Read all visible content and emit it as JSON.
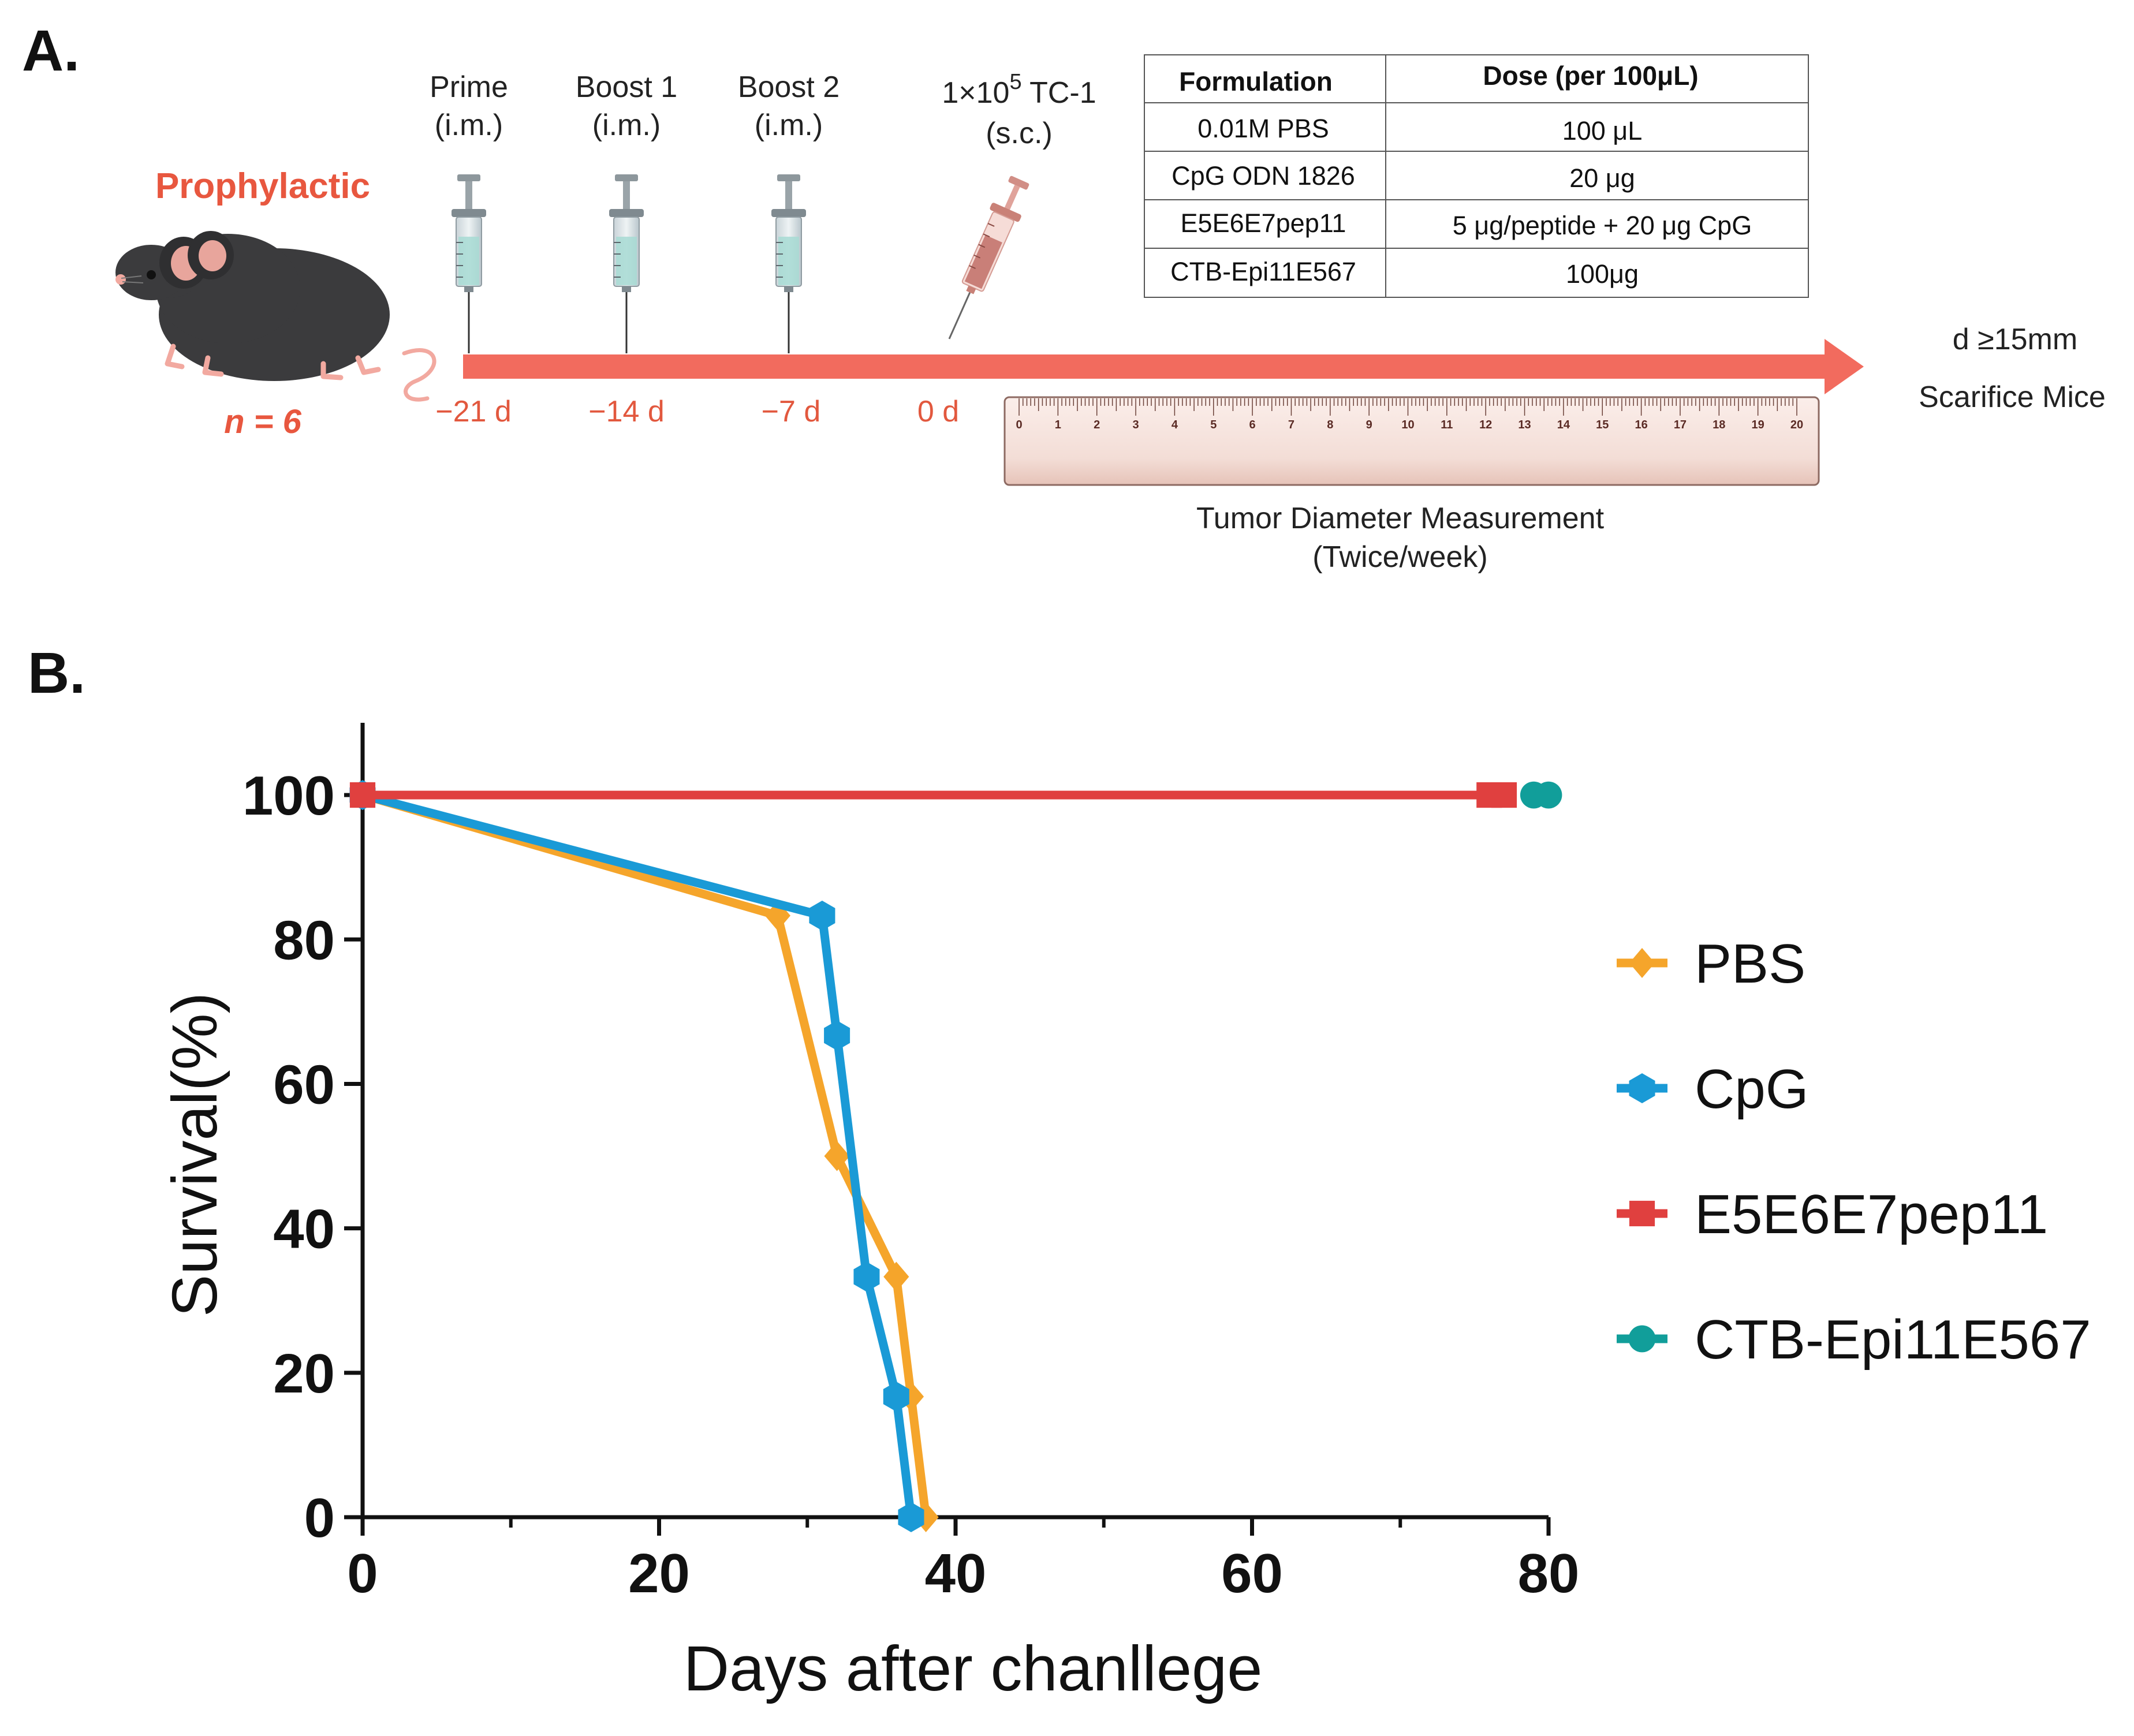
{
  "panel_a": {
    "label": "A.",
    "group_label": "Prophylactic",
    "n_label": "n = 6",
    "steps": [
      {
        "line1": "Prime",
        "line2": "(i.m.)",
        "day": "−21 d"
      },
      {
        "line1": "Boost 1",
        "line2": "(i.m.)",
        "day": "−14 d"
      },
      {
        "line1": "Boost 2",
        "line2": "(i.m.)",
        "day": "−7 d"
      },
      {
        "line1": "1×10",
        "line1_sup": "5",
        "line1_after": " TC-1",
        "line2": "(s.c.)",
        "day": "0 d"
      }
    ],
    "endpoint": {
      "line1": "d ≥15mm",
      "line2": "Scarifice Mice"
    },
    "ruler": {
      "numbers": [
        "0",
        "1",
        "2",
        "3",
        "4",
        "5",
        "6",
        "7",
        "8",
        "9",
        "10",
        "11",
        "12",
        "13",
        "14",
        "15",
        "16",
        "17",
        "18",
        "19",
        "20"
      ],
      "caption1": "Tumor Diameter Measurement",
      "caption2": "(Twice/week)"
    },
    "table": {
      "headers": [
        "Formulation",
        "Dose  (per 100μL)"
      ],
      "rows": [
        [
          "0.01M PBS",
          "100 μL"
        ],
        [
          "CpG ODN 1826",
          "20 μg"
        ],
        [
          "E5E6E7pep11",
          "5 μg/peptide + 20 μg CpG"
        ],
        [
          "CTB-Epi11E567",
          "100μg"
        ]
      ]
    },
    "colors": {
      "accent": "#f26b5e",
      "text_red": "#e2583e"
    }
  },
  "panel_b": {
    "label": "B."
  },
  "chart_data": {
    "type": "line",
    "xlabel": "Days after chanllege",
    "ylabel": "Survival(%)",
    "xlim": [
      0,
      80
    ],
    "ylim": [
      0,
      110
    ],
    "xticks": [
      0,
      20,
      40,
      60,
      80
    ],
    "xminor": [
      10,
      30,
      50,
      70
    ],
    "yticks": [
      0,
      20,
      40,
      60,
      80,
      100
    ],
    "grid": false,
    "legend_position": "right",
    "series": [
      {
        "name": "PBS",
        "color": "#f5a52b",
        "marker": "diamond",
        "x": [
          0,
          28,
          32,
          36,
          37,
          38
        ],
        "y": [
          100,
          83.3,
          50,
          33.3,
          16.7,
          0
        ]
      },
      {
        "name": "CpG",
        "color": "#1a9ad6",
        "marker": "hexagon",
        "x": [
          0,
          31,
          32,
          34,
          36,
          37
        ],
        "y": [
          100,
          83.3,
          66.7,
          33.3,
          16.7,
          0
        ]
      },
      {
        "name": "E5E6E7pep11",
        "color": "#e0403f",
        "marker": "square",
        "x": [
          0,
          76,
          77
        ],
        "y": [
          100,
          100,
          100
        ]
      },
      {
        "name": "CTB-Epi11E567",
        "color": "#119e9a",
        "marker": "circle",
        "x": [
          79,
          80
        ],
        "y": [
          100,
          100
        ]
      }
    ]
  }
}
